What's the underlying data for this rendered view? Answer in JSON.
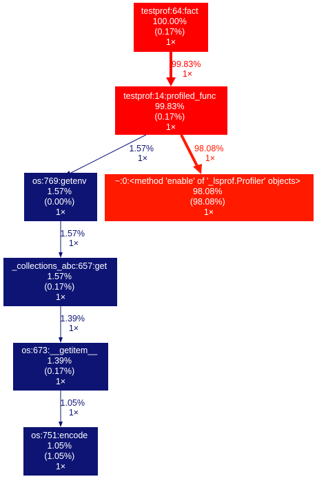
{
  "colors": {
    "red": "#ff0000",
    "red_orange": "#ff1a00",
    "navy": "#0d1473",
    "white": "#ffffff",
    "background": "#ffffff"
  },
  "nodes": {
    "fact": {
      "lines": [
        "testprof:64:fact",
        "100.00%",
        "(0.17%)",
        "1×"
      ],
      "color": "#ff0000"
    },
    "profiled_func": {
      "lines": [
        "testprof:14:profiled_func",
        "99.83%",
        "(0.17%)",
        "1×"
      ],
      "color": "#ff0000"
    },
    "getenv": {
      "lines": [
        "os:769:getenv",
        "1.57%",
        "(0.00%)",
        "1×"
      ],
      "color": "#0d1473"
    },
    "lsprof": {
      "lines": [
        "~:0:<method 'enable' of '_lsprof.Profiler' objects>",
        "98.08%",
        "(98.08%)",
        "1×"
      ],
      "color": "#ff1a00"
    },
    "collections_get": {
      "lines": [
        "_collections_abc:657:get",
        "1.57%",
        "(0.17%)",
        "1×"
      ],
      "color": "#0d1473"
    },
    "getitem": {
      "lines": [
        "os:673:__getitem__",
        "1.39%",
        "(0.17%)",
        "1×"
      ],
      "color": "#0d1473"
    },
    "encode": {
      "lines": [
        "os:751:encode",
        "1.05%",
        "(1.05%)",
        "1×"
      ],
      "color": "#0d1473"
    }
  },
  "edges": {
    "fact_to_profiled": {
      "lines": [
        "99.83%",
        "1×"
      ],
      "color": "#ff0000"
    },
    "profiled_to_getenv": {
      "lines": [
        "1.57%",
        "1×"
      ],
      "color": "#0d1473"
    },
    "profiled_to_lsprof": {
      "lines": [
        "98.08%",
        "1×"
      ],
      "color": "#ff1a00"
    },
    "getenv_to_get": {
      "lines": [
        "1.57%",
        "1×"
      ],
      "color": "#0d1473"
    },
    "get_to_getitem": {
      "lines": [
        "1.39%",
        "1×"
      ],
      "color": "#0d1473"
    },
    "getitem_to_encode": {
      "lines": [
        "1.05%",
        "1×"
      ],
      "color": "#0d1473"
    }
  }
}
